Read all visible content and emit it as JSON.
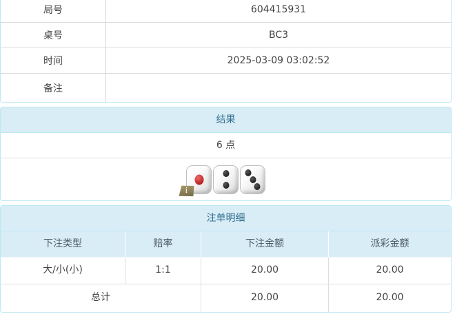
{
  "colors": {
    "panel_border": "#bce8f1",
    "panel_header_bg": "#d9edf7",
    "panel_header_text": "#31708f",
    "row_divider": "#dddddd",
    "body_text": "#444444",
    "odds_red": "#e4393c",
    "info_badge_bg": "#8b7d55"
  },
  "info_table": {
    "rows": [
      {
        "label": "局号",
        "value": "604415931"
      },
      {
        "label": "桌号",
        "value": "BC3"
      },
      {
        "label": "时间",
        "value": "2025-03-09 03:02:52"
      },
      {
        "label": "备注",
        "value": ""
      }
    ]
  },
  "result_panel": {
    "title": "结果",
    "points": "6 点",
    "dice": [
      1,
      2,
      3
    ],
    "info_badge": "i"
  },
  "bets_panel": {
    "title": "注单明细",
    "columns": [
      "下注类型",
      "赔率",
      "下注金额",
      "派彩金额"
    ],
    "rows": [
      {
        "type": "大/小(小)",
        "odds": "1:1",
        "bet_amount": "20.00",
        "payout": "20.00"
      }
    ],
    "total": {
      "label": "总计",
      "bet_amount": "20.00",
      "payout": "20.00"
    }
  }
}
